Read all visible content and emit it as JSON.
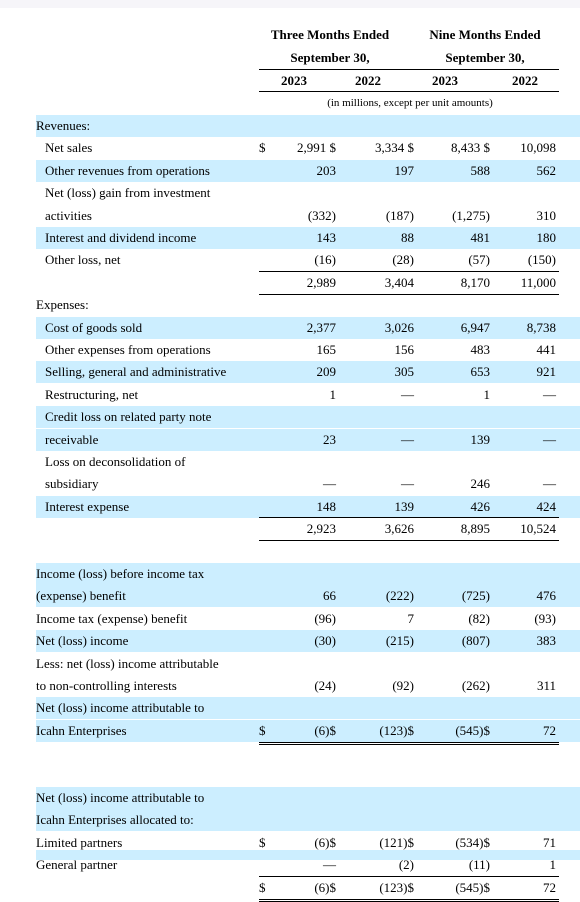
{
  "header": {
    "group1_line1": "Three Months Ended",
    "group1_line2": "September 30,",
    "group2_line1": "Nine Months Ended",
    "group2_line2": "September 30,",
    "years": [
      "2023",
      "2022",
      "2023",
      "2022"
    ],
    "note": "(in millions, except per unit amounts)"
  },
  "rows": [
    {
      "label": "Revenues:"
    },
    {
      "label": "Net sales",
      "dollar": "$",
      "c1": "2,991 $",
      "c2": "3,334 $",
      "c3": "8,433 $",
      "c4": "10,098"
    },
    {
      "label": "Other revenues from operations",
      "c1": "203",
      "c2": "197",
      "c3": "588",
      "c4": "562"
    },
    {
      "label": "Net (loss) gain from investment"
    },
    {
      "label": "activities",
      "c1": "(332)",
      "c2": "(187)",
      "c3": "(1,275)",
      "c4": "310"
    },
    {
      "label": "Interest and dividend income",
      "c1": "143",
      "c2": "88",
      "c3": "481",
      "c4": "180"
    },
    {
      "label": "Other loss, net",
      "c1": "(16)",
      "c2": "(28)",
      "c3": "(57)",
      "c4": "(150)"
    },
    {
      "label": "",
      "c1": "2,989",
      "c2": "3,404",
      "c3": "8,170",
      "c4": "11,000"
    },
    {
      "label": "Expenses:"
    },
    {
      "label": "Cost of goods sold",
      "c1": "2,377",
      "c2": "3,026",
      "c3": "6,947",
      "c4": "8,738"
    },
    {
      "label": "Other expenses from operations",
      "c1": "165",
      "c2": "156",
      "c3": "483",
      "c4": "441"
    },
    {
      "label": "Selling, general and administrative",
      "c1": "209",
      "c2": "305",
      "c3": "653",
      "c4": "921"
    },
    {
      "label": "Restructuring, net",
      "c1": "1",
      "c2": "—",
      "c3": "1",
      "c4": "—"
    },
    {
      "label": "Credit loss on related party note"
    },
    {
      "label": "receivable",
      "c1": "23",
      "c2": "—",
      "c3": "139",
      "c4": "—"
    },
    {
      "label": "Loss on deconsolidation of"
    },
    {
      "label": "subsidiary",
      "c1": "—",
      "c2": "—",
      "c3": "246",
      "c4": "—"
    },
    {
      "label": "Interest expense",
      "c1": "148",
      "c2": "139",
      "c3": "426",
      "c4": "424"
    },
    {
      "label": "",
      "c1": "2,923",
      "c2": "3,626",
      "c3": "8,895",
      "c4": "10,524"
    },
    {
      "label": ""
    },
    {
      "label": "Income (loss) before income tax"
    },
    {
      "label": "(expense) benefit",
      "c1": "66",
      "c2": "(222)",
      "c3": "(725)",
      "c4": "476"
    },
    {
      "label": "Income tax (expense) benefit",
      "c1": "(96)",
      "c2": "7",
      "c3": "(82)",
      "c4": "(93)"
    },
    {
      "label": "Net (loss) income",
      "c1": "(30)",
      "c2": "(215)",
      "c3": "(807)",
      "c4": "383"
    },
    {
      "label": "Less: net (loss) income attributable"
    },
    {
      "label": "to non-controlling interests",
      "c1": "(24)",
      "c2": "(92)",
      "c3": "(262)",
      "c4": "311"
    },
    {
      "label": "Net (loss) income attributable to"
    },
    {
      "label": "Icahn Enterprises",
      "dollar": "$",
      "c1": "(6)$",
      "c2": "(123)$",
      "c3": "(545)$",
      "c4": "72"
    },
    {
      "label": ""
    },
    {
      "label": ""
    },
    {
      "label": "Net (loss) income attributable to"
    },
    {
      "label": "Icahn Enterprises allocated to:"
    },
    {
      "label": "Limited partners",
      "dollar": "$",
      "c1": "(6)$",
      "c2": "(121)$",
      "c3": "(534)$",
      "c4": "71"
    },
    {
      "label": "General partner",
      "c1": "—",
      "c2": "(2)",
      "c3": "(11)",
      "c4": "1"
    },
    {
      "label": "",
      "dollar": "$",
      "c1": "(6)$",
      "c2": "(123)$",
      "c3": "(545)$",
      "c4": "72"
    }
  ]
}
